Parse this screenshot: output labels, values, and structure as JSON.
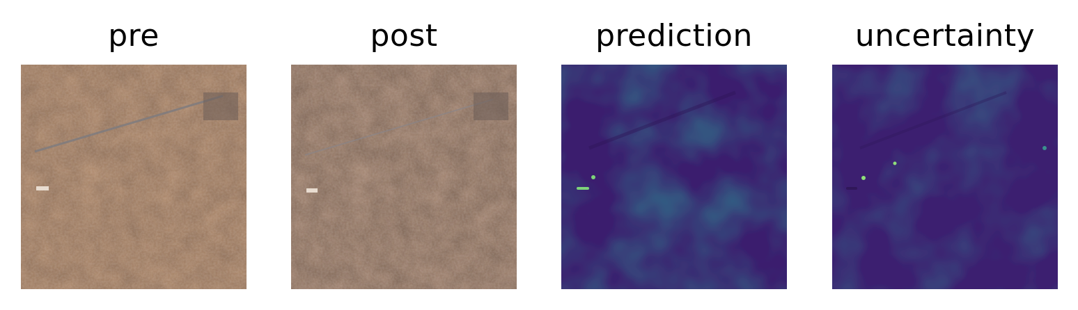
{
  "panels": [
    {
      "title": "pre",
      "kind": "satellite-rgb",
      "palette": {
        "base": "#b08a6c",
        "dark": "#6e5443",
        "light": "#cfa888"
      }
    },
    {
      "title": "post",
      "kind": "satellite-rgb",
      "palette": {
        "base": "#a58672",
        "dark": "#5f4a3d",
        "light": "#c8a68e"
      }
    },
    {
      "title": "prediction",
      "kind": "heatmap",
      "palette": {
        "low": "#3b1d6e",
        "mid": "#3a5c92",
        "high": "#2f7f8e",
        "hot": "#7dd37a"
      }
    },
    {
      "title": "uncertainty",
      "kind": "heatmap",
      "palette": {
        "low": "#3c1f70",
        "mid": "#3c4f90",
        "high": "#33788e",
        "hot": "#8fe07a"
      }
    }
  ]
}
